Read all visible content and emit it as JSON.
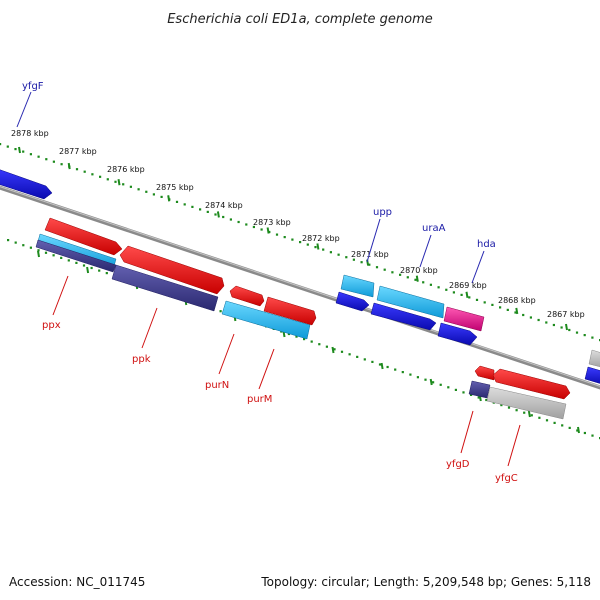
{
  "title": "Escherichia coli ED1a, complete genome",
  "footer": {
    "accession": "Accession: NC_011745",
    "summary": "Topology: circular; Length: 5,209,548 bp; Genes: 5,118"
  },
  "ticks": [
    "2878 kbp",
    "2877 kbp",
    "2876 kbp",
    "2875 kbp",
    "2874 kbp",
    "2873 kbp",
    "2872 kbp",
    "2871 kbp",
    "2870 kbp",
    "2869 kbp",
    "2868 kbp",
    "2867 kbp"
  ],
  "genes": {
    "yfgF": "yfgF",
    "upp": "upp",
    "uraA": "uraA",
    "hda": "hda",
    "ppx": "ppx",
    "ppk": "ppk",
    "purN": "purN",
    "purM": "purM",
    "yfgD": "yfgD",
    "yfgC": "yfgC"
  },
  "colors": {
    "red": "#ee1111",
    "blue": "#1515e0",
    "cyan": "#1ab4ee",
    "navy": "#3d3a8a",
    "magenta": "#e0188a",
    "grey": "#b8b8b8",
    "dots": "#1d8a1d"
  }
}
